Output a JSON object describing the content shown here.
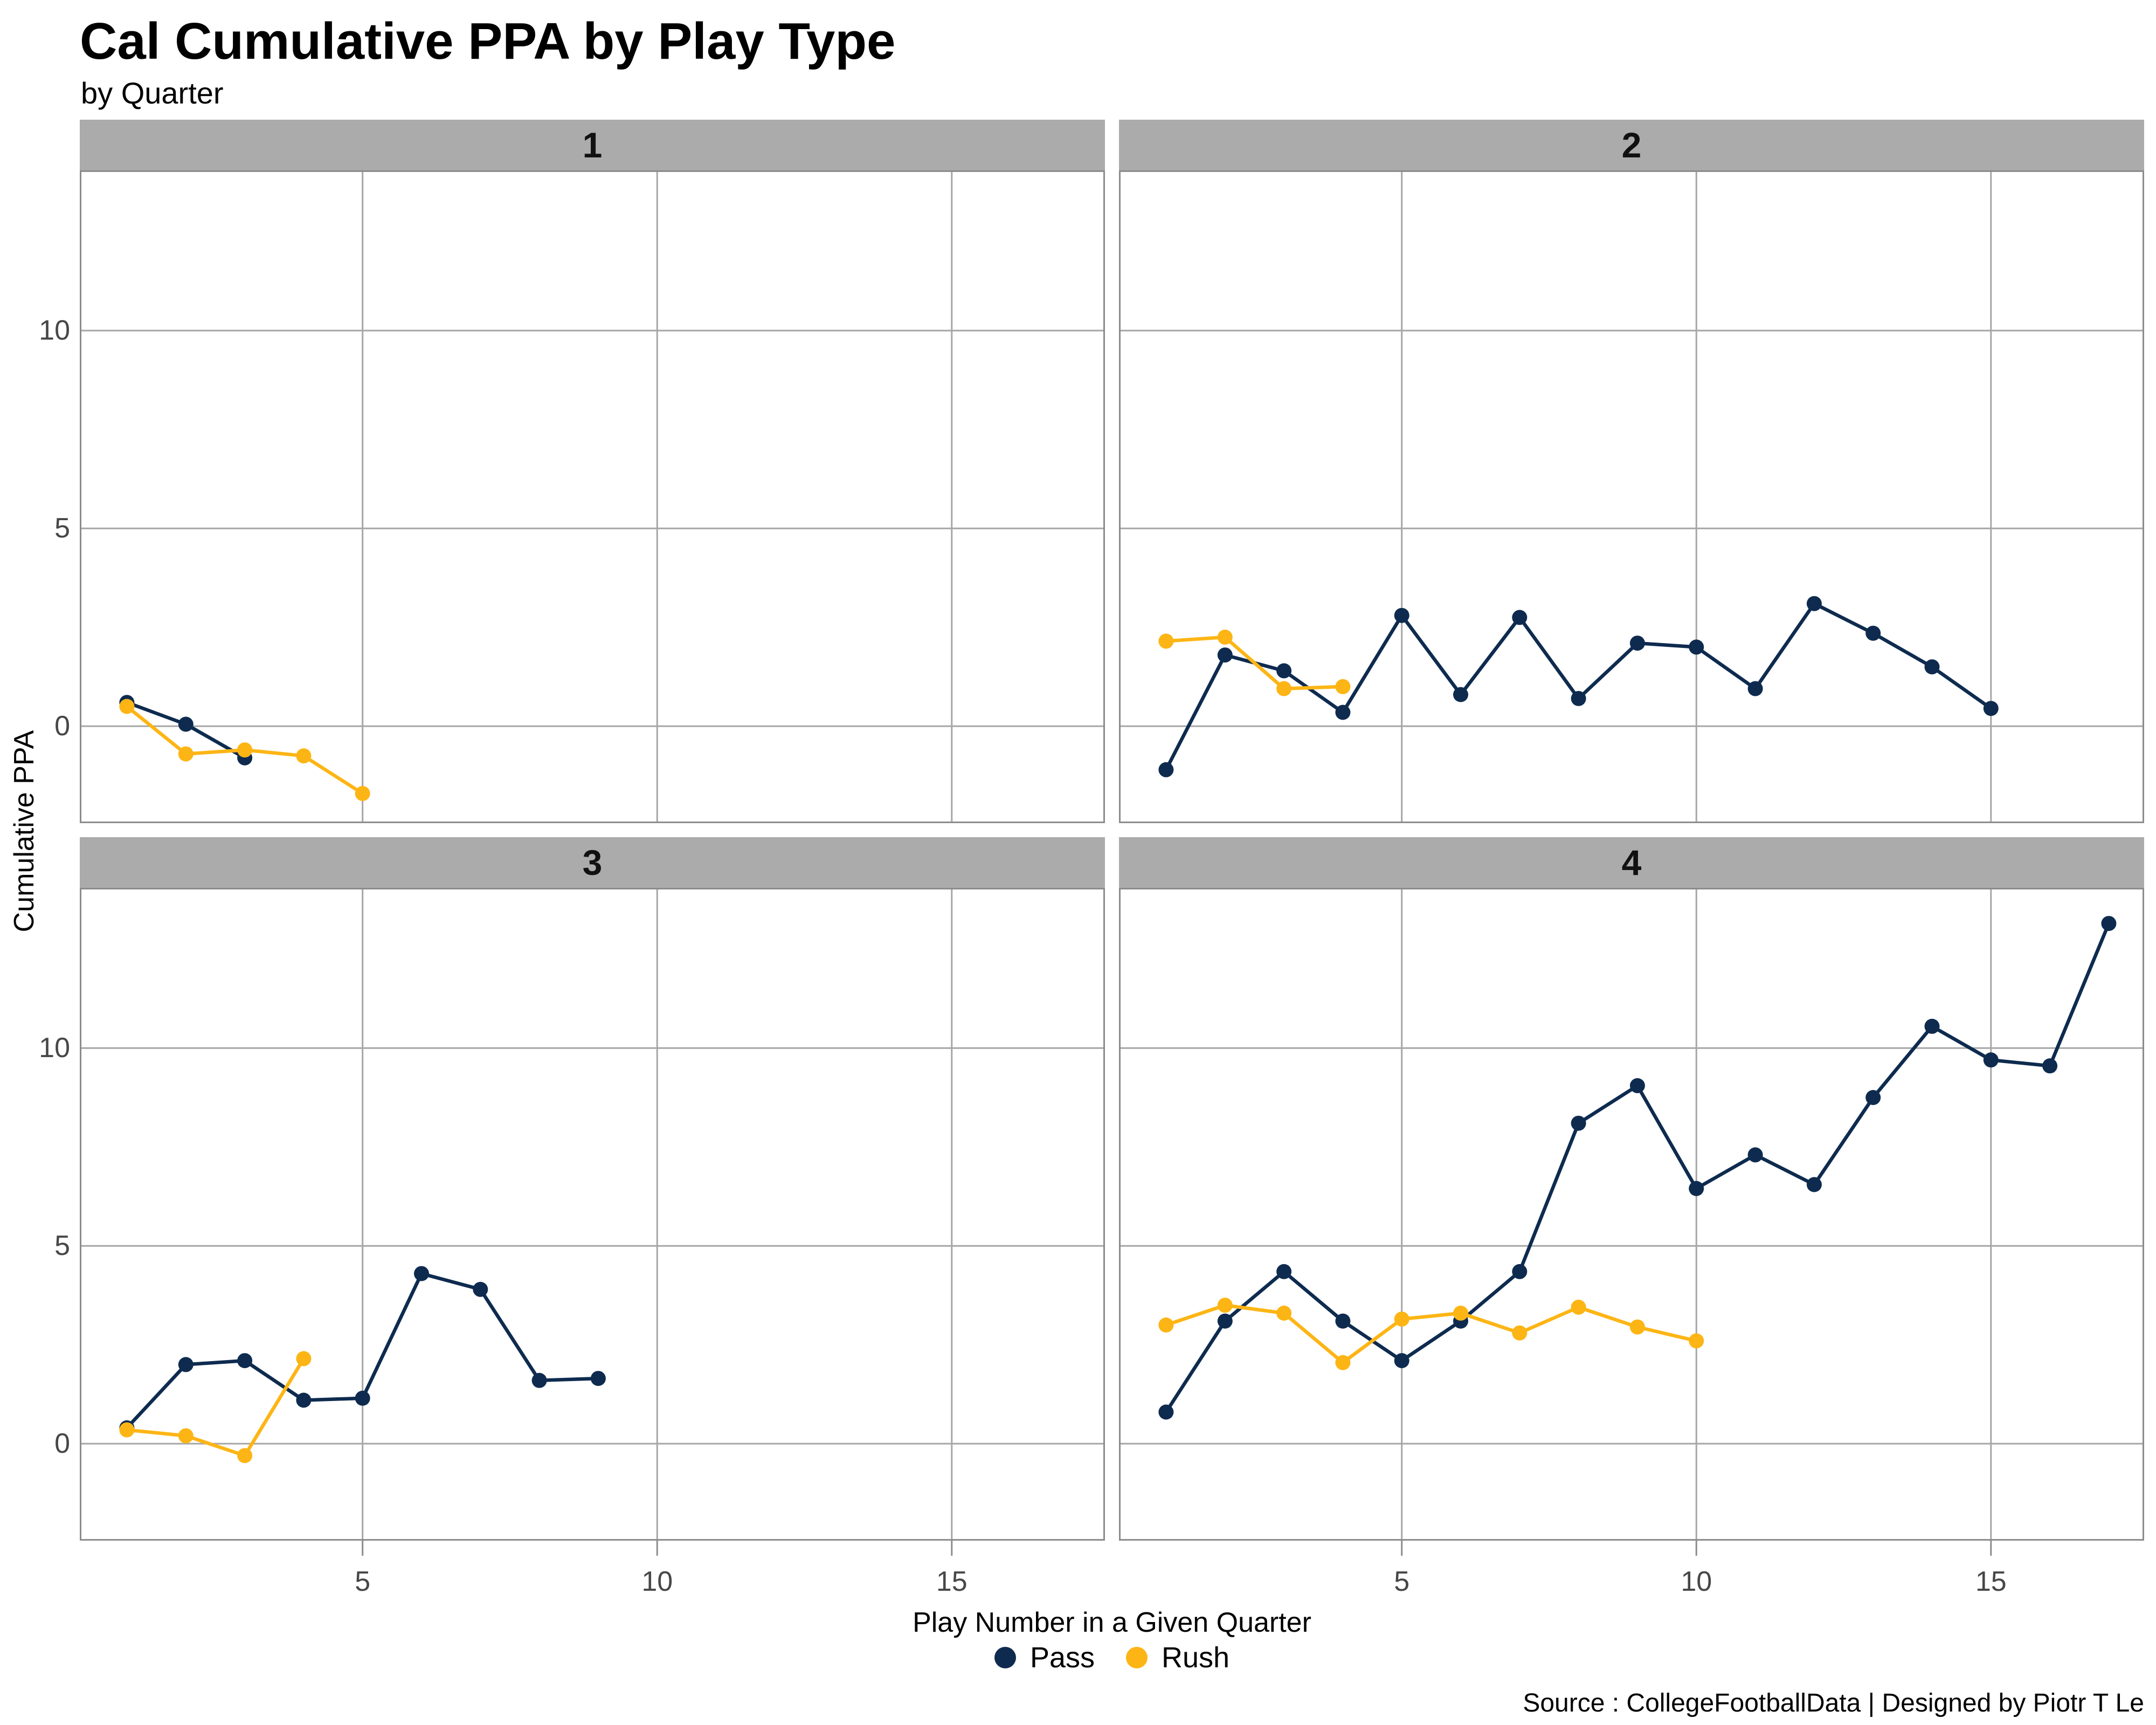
{
  "header": {
    "title": "Cal Cumulative PPA by Play Type",
    "subtitle": "by Quarter"
  },
  "axes": {
    "x_title": "Play Number in a Given Quarter",
    "y_title": "Cumulative PPA",
    "x_ticks": [
      5,
      10,
      15
    ],
    "y_ticks": [
      0,
      5,
      10
    ],
    "x_domain": [
      0.2,
      17.6
    ],
    "y_domain": [
      -2.45,
      14.05
    ],
    "grid": "major-only"
  },
  "legend": {
    "position": "bottom-center",
    "items": [
      {
        "label": "Pass",
        "color": "#0E2B4F"
      },
      {
        "label": "Rush",
        "color": "#FDB515"
      }
    ]
  },
  "caption": "Source : CollegeFootballData | Designed by Piotr T Le",
  "colors": {
    "pass": "#0E2B4F",
    "rush": "#FDB515",
    "strip_background": "#ABABAB",
    "gridline": "#A6A6A6",
    "panel_border": "#8C8C8C",
    "tick_mark": "#8C8C8C",
    "tick_text": "#474747"
  },
  "chart_data": {
    "type": "line",
    "title": "Cal Cumulative PPA by Play Type",
    "subtitle": "by Quarter",
    "xlabel": "Play Number in a Given Quarter",
    "ylabel": "Cumulative PPA",
    "facet_by": "Quarter",
    "x_start": 1,
    "x_step": 1,
    "xlim": [
      0.2,
      17.6
    ],
    "ylim": [
      -2.45,
      14.05
    ],
    "legend_position": "bottom",
    "facets": [
      {
        "label": "1",
        "series": [
          {
            "name": "Pass",
            "values": [
              0.6,
              0.05,
              -0.8
            ]
          },
          {
            "name": "Rush",
            "values": [
              0.5,
              -0.7,
              -0.6,
              -0.75,
              -1.7
            ]
          }
        ]
      },
      {
        "label": "2",
        "series": [
          {
            "name": "Pass",
            "values": [
              -1.1,
              1.8,
              1.4,
              0.35,
              2.8,
              0.8,
              2.75,
              0.7,
              2.1,
              2.0,
              0.95,
              3.1,
              2.35,
              1.5,
              0.45
            ]
          },
          {
            "name": "Rush",
            "values": [
              2.15,
              2.25,
              0.95,
              1.0
            ]
          }
        ]
      },
      {
        "label": "3",
        "series": [
          {
            "name": "Pass",
            "values": [
              0.4,
              2.0,
              2.1,
              1.1,
              1.15,
              4.3,
              3.9,
              1.6,
              1.65
            ]
          },
          {
            "name": "Rush",
            "values": [
              0.35,
              0.2,
              -0.3,
              2.15
            ]
          }
        ]
      },
      {
        "label": "4",
        "series": [
          {
            "name": "Pass",
            "values": [
              0.8,
              3.1,
              4.35,
              3.1,
              2.1,
              3.1,
              4.35,
              8.1,
              9.05,
              6.45,
              7.3,
              6.55,
              8.75,
              10.55,
              9.7,
              9.55,
              13.15
            ]
          },
          {
            "name": "Rush",
            "values": [
              3.0,
              3.5,
              3.3,
              2.05,
              3.15,
              3.3,
              2.8,
              3.45,
              2.95,
              2.6
            ]
          }
        ]
      }
    ]
  }
}
